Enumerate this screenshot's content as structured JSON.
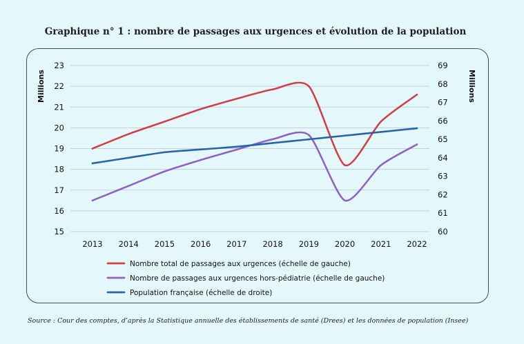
{
  "title": "Graphique n° 1 : nombre de passages aux urgences et évolution de la population",
  "source": "Source : Cour des comptes, d’après la Statistique annuelle des établissements de santé (Drees) et les données de population (Insee)",
  "chart_data": {
    "type": "line",
    "title": "Graphique n° 1 : nombre de passages aux urgences et évolution de la population",
    "x": [
      2013,
      2014,
      2015,
      2016,
      2017,
      2018,
      2019,
      2020,
      2021,
      2022
    ],
    "x_tick_labels": [
      "2013",
      "2014",
      "2015",
      "2016",
      "2017",
      "2018",
      "2019",
      "2020",
      "2021",
      "2022"
    ],
    "y_left": {
      "label": "Millions",
      "range": [
        15,
        23
      ],
      "ticks": [
        "15",
        "16",
        "17",
        "18",
        "19",
        "20",
        "21",
        "22",
        "23"
      ]
    },
    "y_right": {
      "label": "Millions",
      "range": [
        60,
        69
      ],
      "ticks": [
        "60",
        "61",
        "62",
        "63",
        "64",
        "65",
        "66",
        "67",
        "68",
        "69"
      ]
    },
    "grid": true,
    "legend_position": "bottom",
    "series": [
      {
        "name": "Nombre total de passages aux urgences (échelle de gauche)",
        "axis": "left",
        "color": "#d04048",
        "values": [
          19.0,
          19.7,
          20.3,
          20.9,
          21.4,
          21.85,
          22.0,
          18.2,
          20.3,
          21.6
        ]
      },
      {
        "name": "Nombre de passages aux urgences hors-pédiatrie (échelle de gauche)",
        "axis": "left",
        "color": "#8e63c4",
        "values": [
          16.5,
          17.2,
          17.9,
          18.45,
          18.95,
          19.45,
          19.65,
          16.5,
          18.2,
          19.2
        ]
      },
      {
        "name": "Population française (échelle de droite)",
        "axis": "right",
        "color": "#2a64a8",
        "values": [
          63.7,
          64.0,
          64.3,
          64.45,
          64.6,
          64.8,
          65.0,
          65.2,
          65.4,
          65.6
        ]
      }
    ]
  }
}
